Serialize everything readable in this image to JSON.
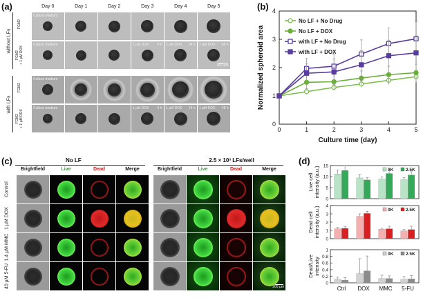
{
  "panel_a": {
    "label": "(a)",
    "days": [
      "Day 0",
      "Day 1",
      "Day 2",
      "Day 3",
      "Day 4",
      "Day 5"
    ],
    "group_without": "without LFs",
    "group_with": "with LFs",
    "row_labels": [
      "FGM2",
      "FGM2\n+ 1 µM DOX",
      "FGM2",
      "FGM2\n+ 1 µM DOX"
    ],
    "in_image": {
      "culture_medium": "Culture medium",
      "fgm2": "FGM2",
      "dox": "1 µM DOX",
      "t0": "0 h",
      "t24": "24 h",
      "t48": "48 h"
    },
    "scale": "500 µm"
  },
  "panel_b": {
    "label": "(b)",
    "chart_data": {
      "type": "line",
      "xlabel": "Culture time (day)",
      "ylabel": "Normalized spheroid area",
      "x": [
        0,
        1,
        2,
        3,
        4,
        5
      ],
      "xlim": [
        0,
        5
      ],
      "ylim": [
        0,
        4
      ],
      "yticks": [
        0,
        1,
        2,
        3,
        4
      ],
      "legend_position": "top-left",
      "series": [
        {
          "name": "No LF + No Drug",
          "color": "#7dbf4e",
          "marker": "open-circle",
          "values": [
            1.0,
            1.15,
            1.3,
            1.42,
            1.55,
            1.68
          ],
          "err": [
            0,
            0.1,
            0.1,
            0.12,
            0.15,
            0.2
          ]
        },
        {
          "name": "No LF + DOX",
          "color": "#6aae3a",
          "marker": "filled-circle",
          "values": [
            1.0,
            1.48,
            1.5,
            1.63,
            1.75,
            1.82
          ],
          "err": [
            0,
            0.25,
            0.25,
            0.25,
            0.3,
            0.3
          ]
        },
        {
          "name": "with LF + No Drug",
          "color": "#5a3c9e",
          "marker": "open-square",
          "values": [
            1.0,
            1.97,
            2.05,
            2.48,
            2.85,
            3.02
          ],
          "err": [
            0,
            0.35,
            0.4,
            0.5,
            0.55,
            0.6
          ]
        },
        {
          "name": "with LF + DOX",
          "color": "#5a3c9e",
          "marker": "filled-square",
          "values": [
            1.0,
            1.8,
            1.85,
            2.1,
            2.42,
            2.52
          ],
          "err": [
            0,
            0.35,
            0.45,
            0.5,
            0.55,
            0.6
          ]
        }
      ]
    }
  },
  "panel_c": {
    "label": "(c)",
    "title_no_lf": "No LF",
    "title_lf": "2.5 × 10³ LFs/well",
    "columns": [
      "Brightfield",
      "Live",
      "Dead",
      "Merge"
    ],
    "column_colors": [
      "#111111",
      "#2fa22f",
      "#d42020",
      "#111111"
    ],
    "rows": [
      "Control",
      "1 µM DOX",
      "1.4 µM MMC",
      "40 µM 5-FU"
    ],
    "scale": "200 µm"
  },
  "panel_d": {
    "label": "(d)",
    "chart_data": {
      "type": "bar",
      "categories": [
        "Ctrl",
        "DOX",
        "MMC",
        "5-FU"
      ],
      "legend": [
        "0K",
        "2.5K"
      ],
      "subplots": [
        {
          "ylabel": "Live cell intensity (a.u.)",
          "ylim": [
            0,
            15
          ],
          "yticks": [
            0,
            5,
            10,
            15
          ],
          "colors": [
            "#b9e3c6",
            "#35a85a"
          ],
          "series": [
            {
              "name": "0K",
              "values": [
                11.2,
                9.4,
                8.9,
                8.6
              ],
              "err": [
                1.8,
                1.6,
                1.0,
                1.0
              ]
            },
            {
              "name": "2.5K",
              "values": [
                12.8,
                8.5,
                11.4,
                10.7
              ],
              "err": [
                3.0,
                1.0,
                2.2,
                1.5
              ]
            }
          ]
        },
        {
          "ylabel": "Dead cell intensity (a.u.)",
          "ylim": [
            0,
            4
          ],
          "yticks": [
            0,
            1,
            2,
            3,
            4
          ],
          "colors": [
            "#f2b0b0",
            "#d92020"
          ],
          "series": [
            {
              "name": "0K",
              "values": [
                1.2,
                2.7,
                1.15,
                0.95
              ],
              "err": [
                0.15,
                0.3,
                0.1,
                0.15
              ]
            },
            {
              "name": "2.5K",
              "values": [
                1.25,
                3.05,
                1.2,
                1.1
              ],
              "err": [
                0.2,
                0.25,
                0.3,
                0.4
              ]
            }
          ]
        },
        {
          "ylabel": "Dead/Live intensity",
          "ylim": [
            0,
            1.0
          ],
          "yticks": [
            0,
            0.2,
            0.4,
            0.6,
            0.8,
            1.0
          ],
          "colors": [
            "#d2d2d2",
            "#8c8c8c"
          ],
          "series": [
            {
              "name": "0K",
              "values": [
                0.11,
                0.28,
                0.13,
                0.11
              ],
              "err": [
                0.06,
                0.45,
                0.1,
                0.08
              ]
            },
            {
              "name": "2.5K",
              "values": [
                0.08,
                0.36,
                0.13,
                0.12
              ],
              "err": [
                0.08,
                0.45,
                0.08,
                0.1
              ]
            }
          ]
        }
      ]
    }
  }
}
